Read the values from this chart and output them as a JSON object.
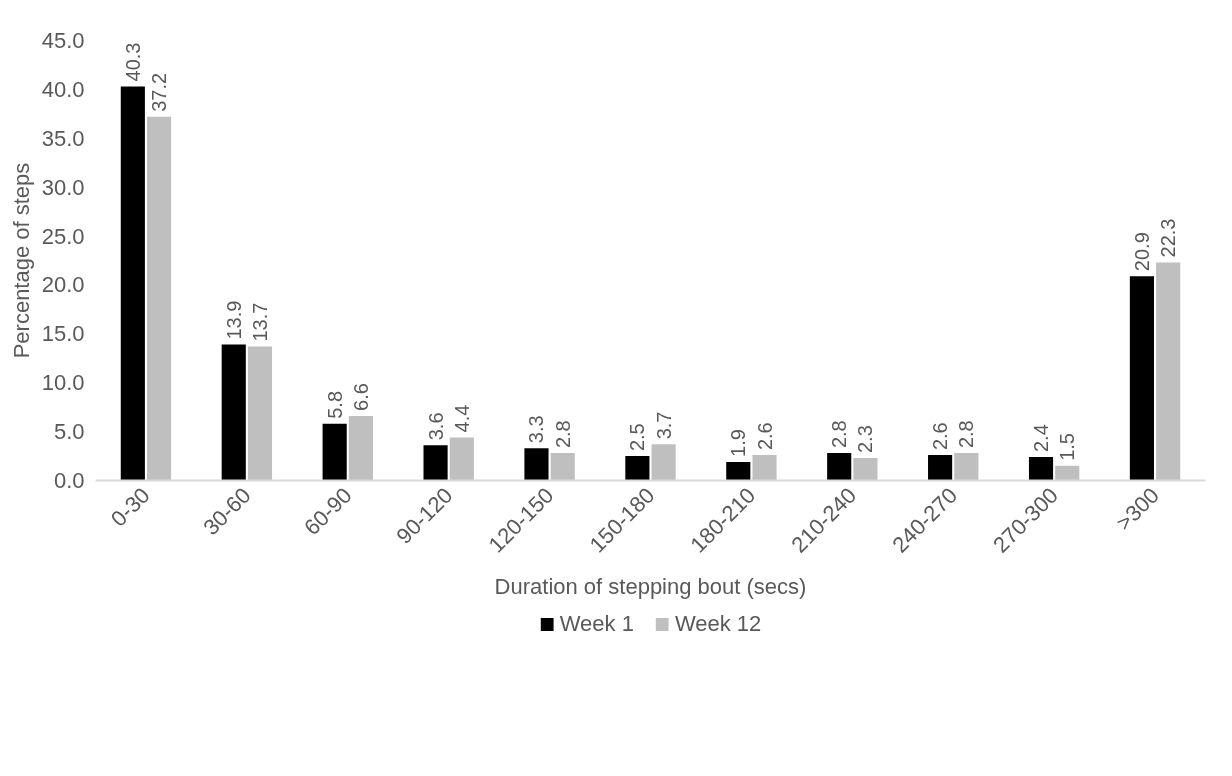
{
  "chart_data": {
    "type": "bar",
    "xlabel": "Duration of stepping bout (secs)",
    "ylabel": "Percentage of steps",
    "categories": [
      "0-30",
      "30-60",
      "60-90",
      "90-120",
      "120-150",
      "150-180",
      "180-210",
      "210-240",
      "240-270",
      "270-300",
      ">300"
    ],
    "series": [
      {
        "name": "Week 1",
        "color": "#000000",
        "values": [
          40.3,
          13.9,
          5.8,
          3.6,
          3.3,
          2.5,
          1.9,
          2.8,
          2.6,
          2.4,
          20.9
        ]
      },
      {
        "name": "Week 12",
        "color": "#bfbfbf",
        "values": [
          37.2,
          13.7,
          6.6,
          4.4,
          2.8,
          3.7,
          2.6,
          2.3,
          2.8,
          1.5,
          22.3
        ]
      }
    ],
    "ylim": [
      0,
      45
    ],
    "yticks": [
      {
        "value": 0,
        "label": "0.0"
      },
      {
        "value": 5,
        "label": "5.0"
      },
      {
        "value": 10,
        "label": "10.0"
      },
      {
        "value": 15,
        "label": "15.0"
      },
      {
        "value": 20,
        "label": "20.0"
      },
      {
        "value": 25,
        "label": "25.0"
      },
      {
        "value": 30,
        "label": "30.0"
      },
      {
        "value": 35,
        "label": "35.0"
      },
      {
        "value": 40,
        "label": "40.0"
      },
      {
        "value": 45,
        "label": "45.0"
      }
    ],
    "data_labels": true,
    "legend": "bottom",
    "grid": false
  }
}
